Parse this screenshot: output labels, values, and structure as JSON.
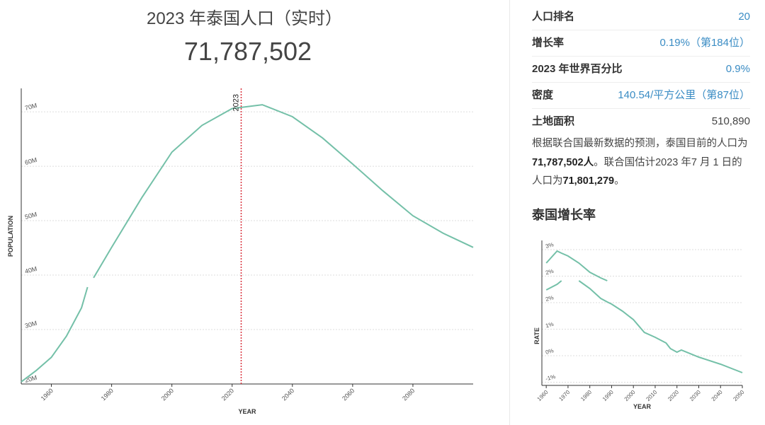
{
  "header": {
    "title": "2023 年泰国人口（实时）",
    "count": "71,787,502"
  },
  "side": {
    "rows": [
      [
        "人口排名",
        "20"
      ],
      [
        "增长率",
        "0.19%（第184位）"
      ],
      [
        "2023 年世界百分比",
        "0.9%"
      ],
      [
        "密度",
        "140.54/平方公里（第87位）"
      ],
      [
        "土地面积",
        "510,890"
      ]
    ],
    "paragraph": [
      {
        "text": "根据联合国最新数据的预测，泰国目前的人口为"
      },
      {
        "text": "71,787,502人",
        "bold": true
      },
      {
        "text": "。联合国估计2023 年7 月 1 日的人口为"
      },
      {
        "text": "71,801,279",
        "bold": true
      },
      {
        "text": "。"
      }
    ],
    "subtitle": "泰国增长率"
  },
  "chart_data": [
    {
      "type": "line",
      "xlabel": "YEAR",
      "ylabel": "POPULATION",
      "x": [
        1950,
        1955,
        1960,
        1965,
        1970,
        1972,
        1973,
        1974,
        1980,
        1990,
        2000,
        2010,
        2020,
        2030,
        2040,
        2050,
        2060,
        2070,
        2080,
        2090,
        2100
      ],
      "series": [
        {
          "color": "#74c0a8",
          "values": [
            20400000,
            22500000,
            24900000,
            28800000,
            34000000,
            37800000,
            null,
            39500000,
            45100000,
            54200000,
            62600000,
            67500000,
            70600000,
            71300000,
            69100000,
            65200000,
            60400000,
            55500000,
            50900000,
            47700000,
            45100000
          ]
        }
      ],
      "xlim": [
        1950,
        2100
      ],
      "xticks": [
        1960,
        1980,
        2000,
        2020,
        2040,
        2060,
        2080
      ],
      "ylim": [
        20000000,
        74300000
      ],
      "yticks": [
        {
          "value": 20000000,
          "label": "20M"
        },
        {
          "value": 30000000,
          "label": "30M"
        },
        {
          "value": 40000000,
          "label": "40M"
        },
        {
          "value": 50000000,
          "label": "50M"
        },
        {
          "value": 60000000,
          "label": "60M"
        },
        {
          "value": 70000000,
          "label": "70M"
        }
      ],
      "grid": true,
      "annotations": [
        {
          "x": 2023,
          "label": "2023",
          "color": "#d9303a"
        }
      ]
    },
    {
      "type": "line",
      "xlabel": "YEAR",
      "ylabel": "RATE",
      "x": [
        1960,
        1965,
        1967,
        1970,
        1975,
        1980,
        1985,
        1988,
        1990,
        1995,
        2000,
        2005,
        2010,
        2015,
        2017,
        2020,
        2022,
        2030,
        2040,
        2050
      ],
      "series": [
        {
          "color": "#74c0a8",
          "values": [
            2.62,
            2.96,
            2.9,
            2.82,
            2.62,
            2.36,
            2.2,
            2.12,
            null,
            null,
            null,
            null,
            null,
            null,
            null,
            null,
            null,
            null,
            null,
            null
          ]
        },
        {
          "color": "#74c0a8",
          "values": [
            1.86,
            2.02,
            2.12,
            null,
            2.12,
            1.9,
            1.62,
            1.52,
            1.46,
            1.26,
            1.02,
            0.66,
            0.52,
            0.36,
            0.2,
            0.1,
            0.16,
            -0.04,
            -0.24,
            -0.48
          ]
        }
      ],
      "xlim": [
        1958,
        2050
      ],
      "xticks": [
        1960,
        1970,
        1980,
        1990,
        2000,
        2010,
        2020,
        2030,
        2040,
        2050
      ],
      "ylim": [
        -0.84,
        3.26
      ],
      "yticks": [
        {
          "value": 3,
          "label": "3%"
        },
        {
          "value": 2.25,
          "label": "2%"
        },
        {
          "value": 1.5,
          "label": "2%"
        },
        {
          "value": 0.75,
          "label": "1%"
        },
        {
          "value": 0,
          "label": "0%"
        },
        {
          "value": -0.75,
          "label": "-1%"
        }
      ],
      "grid": true
    }
  ]
}
